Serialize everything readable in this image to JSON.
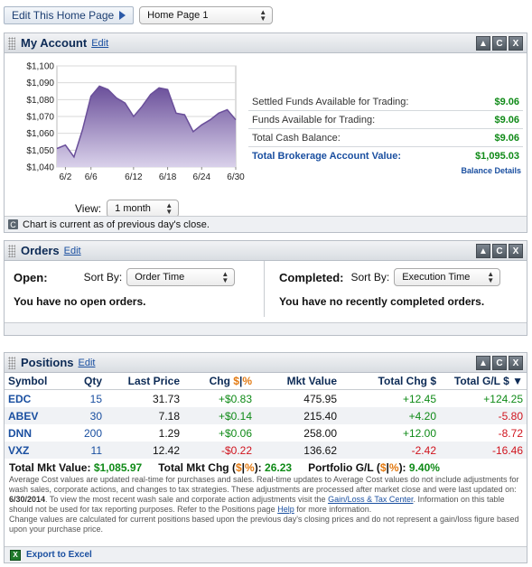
{
  "topbar": {
    "edit_label": "Edit This Home Page",
    "page_select": "Home Page 1"
  },
  "account": {
    "title": "My Account",
    "edit": "Edit",
    "view_label": "View:",
    "view_value": "1 month",
    "rows": [
      {
        "label": "Settled Funds Available for Trading:",
        "value": "$9.06"
      },
      {
        "label": "Funds Available for Trading:",
        "value": "$9.06"
      },
      {
        "label": "Total Cash Balance:",
        "value": "$9.06"
      }
    ],
    "total_label": "Total Brokerage Account Value:",
    "total_value": "$1,095.03",
    "balance_details": "Balance Details",
    "chart_note": "Chart is current as of previous day's close."
  },
  "chart_data": {
    "type": "area",
    "x": [
      "5/31",
      "6/2",
      "6/3",
      "6/4",
      "6/5",
      "6/6",
      "6/9",
      "6/10",
      "6/11",
      "6/12",
      "6/13",
      "6/16",
      "6/17",
      "6/18",
      "6/19",
      "6/20",
      "6/23",
      "6/24",
      "6/25",
      "6/26",
      "6/27",
      "6/30"
    ],
    "y": [
      1051,
      1053,
      1046,
      1062,
      1082,
      1088,
      1086,
      1081,
      1078,
      1070,
      1076,
      1083,
      1087,
      1086,
      1072,
      1071,
      1061,
      1065,
      1068,
      1072,
      1074,
      1068
    ],
    "ylim": [
      1040,
      1100
    ],
    "yticks": [
      "$1,100",
      "$1,090",
      "$1,080",
      "$1,070",
      "$1,060",
      "$1,050",
      "$1,040"
    ],
    "xticks": [
      "6/2",
      "6/6",
      "6/12",
      "6/18",
      "6/24",
      "6/30"
    ],
    "xtick_index": [
      1,
      4,
      9,
      13,
      17,
      21
    ],
    "color": "#6a4f9a",
    "grid": true
  },
  "orders": {
    "title": "Orders",
    "edit": "Edit",
    "open_label": "Open:",
    "open_sort_label": "Sort By:",
    "open_sort_value": "Order Time",
    "open_msg": "You have no open orders.",
    "completed_label": "Completed:",
    "completed_sort_label": "Sort By:",
    "completed_sort_value": "Execution Time",
    "completed_msg": "You have no recently completed orders."
  },
  "positions": {
    "title": "Positions",
    "edit": "Edit",
    "headers": {
      "symbol": "Symbol",
      "qty": "Qty",
      "last": "Last Price",
      "chg": "Chg",
      "chg_dollar": "$",
      "chg_sep": "|",
      "chg_pct": "%",
      "mkt": "Mkt Value",
      "total_chg": "Total Chg $",
      "total_gl": "Total G/L $ ▼"
    },
    "rows": [
      {
        "symbol": "EDC",
        "qty": "15",
        "last": "31.73",
        "chg": "+$0.83",
        "chg_sign": "pos",
        "mkt": "475.95",
        "total_chg": "+12.45",
        "tc_sign": "pos",
        "gl": "+124.25",
        "gl_sign": "pos"
      },
      {
        "symbol": "ABEV",
        "qty": "30",
        "last": "7.18",
        "chg": "+$0.14",
        "chg_sign": "pos",
        "mkt": "215.40",
        "total_chg": "+4.20",
        "tc_sign": "pos",
        "gl": "-5.80",
        "gl_sign": "neg"
      },
      {
        "symbol": "DNN",
        "qty": "200",
        "last": "1.29",
        "chg": "+$0.06",
        "chg_sign": "pos",
        "mkt": "258.00",
        "total_chg": "+12.00",
        "tc_sign": "pos",
        "gl": "-8.72",
        "gl_sign": "neg"
      },
      {
        "symbol": "VXZ",
        "qty": "11",
        "last": "12.42",
        "chg": "-$0.22",
        "chg_sign": "neg",
        "mkt": "136.62",
        "total_chg": "-2.42",
        "tc_sign": "neg",
        "gl": "-16.46",
        "gl_sign": "neg"
      }
    ],
    "total_mkt_label": "Total Mkt Value:",
    "total_mkt_value": "$1,085.97",
    "total_chg_label": "Total Mkt Chg (",
    "total_chg_dollar": "$",
    "total_chg_sep": "|",
    "total_chg_pct": "%",
    "total_chg_close": "):",
    "total_chg_value": "26.23",
    "portfolio_label": "Portfolio G/L (",
    "portfolio_dollar": "$",
    "portfolio_sep": "|",
    "portfolio_pct": "%",
    "portfolio_close": "):",
    "portfolio_value": "9.40%",
    "fine_1": "Average Cost values are updated real-time for purchases and sales. Real-time updates to Average Cost values do not include adjustments for wash sales, corporate actions, and changes to tax strategies. These adjustments are processed after market close and were last updated on:",
    "fine_date": "6/30/2014",
    "fine_2": ". To view the most recent wash sale and corporate action adjustments visit the",
    "fine_link1": "Gain/Loss & Tax Center",
    "fine_3": ". Information on this table should not be used for tax reporting purposes. Refer to the Positions page",
    "fine_link2": "Help",
    "fine_4": "for more information.",
    "fine_5": "Change values are calculated for current positions based upon the previous day's closing prices and do not represent a gain/loss figure based upon your purchase price.",
    "export": "Export to Excel"
  },
  "panel_buttons": {
    "collapse": "▲",
    "refresh": "C",
    "close": "X"
  }
}
